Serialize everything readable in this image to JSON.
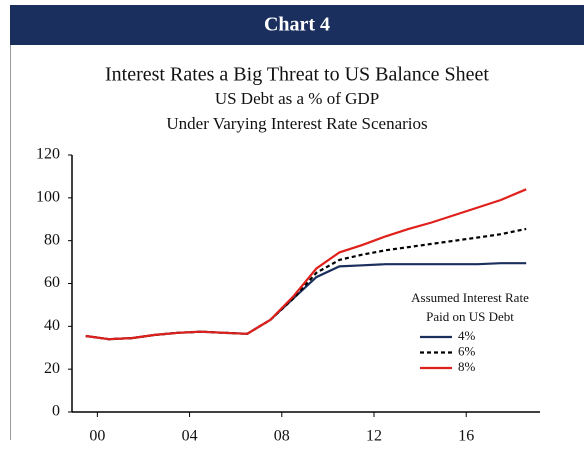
{
  "chart_data": {
    "type": "line",
    "header": "Chart 4",
    "title": "Interest Rates a Big Threat to US Balance Sheet",
    "subtitle": [
      "US Debt as a % of GDP",
      "Under Varying Interest Rate Scenarios"
    ],
    "legend_title": [
      "Assumed Interest Rate",
      "Paid on US Debt"
    ],
    "x": [
      1999.5,
      2000.5,
      2001.5,
      2002.5,
      2003.5,
      2004.5,
      2005.5,
      2006.5,
      2007.5,
      2008.5,
      2009.5,
      2010.5,
      2011.5,
      2012.5,
      2013.5,
      2014.5,
      2015.5,
      2016.5,
      2017.5,
      2018.6
    ],
    "series": [
      {
        "name": "4%",
        "color": "#1b2f5e",
        "dash": false,
        "values": [
          35.5,
          34,
          34.5,
          36,
          37,
          37.5,
          37,
          36.5,
          43,
          53,
          63,
          68,
          68.5,
          69,
          69,
          69,
          69,
          69,
          69.5,
          69.5
        ]
      },
      {
        "name": "6%",
        "color": "#000000",
        "dash": true,
        "values": [
          35.5,
          34,
          34.5,
          36,
          37,
          37.5,
          37,
          36.5,
          43,
          53,
          65,
          71,
          73.5,
          75.5,
          77,
          78.5,
          80,
          81.5,
          83,
          85.5
        ]
      },
      {
        "name": "8%",
        "color": "#e0201b",
        "dash": false,
        "values": [
          35.5,
          34,
          34.5,
          36,
          37,
          37.5,
          37,
          36.5,
          43,
          54,
          67,
          74.5,
          78,
          82,
          85.5,
          88.5,
          92,
          95.5,
          99,
          104
        ]
      }
    ],
    "xlim": [
      1998.9,
      2019.2
    ],
    "xticks": [
      {
        "value": 2000,
        "label": "00"
      },
      {
        "value": 2004,
        "label": "04"
      },
      {
        "value": 2008,
        "label": "08"
      },
      {
        "value": 2012,
        "label": "12"
      },
      {
        "value": 2016,
        "label": "16"
      }
    ],
    "ylim": [
      0,
      120
    ],
    "yticks": [
      0,
      20,
      40,
      60,
      80,
      100,
      120
    ],
    "grid": false
  }
}
